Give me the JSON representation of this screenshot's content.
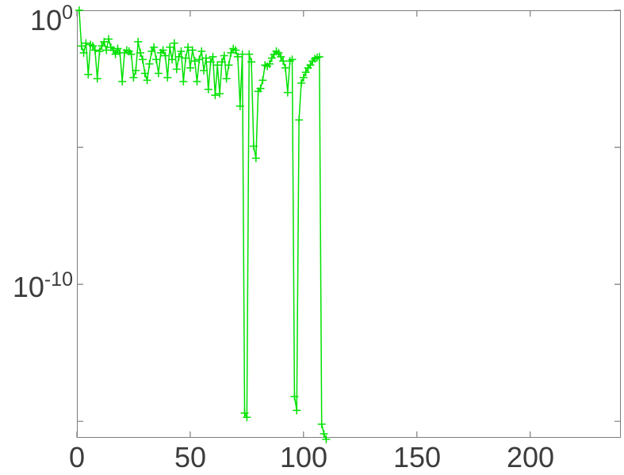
{
  "figure": {
    "background_color": "#ffffff",
    "axis_box_color": "#7d7d7d",
    "tick_label_color": "#3c3c3c"
  },
  "chart_data": {
    "type": "line",
    "title": "",
    "xlabel": "",
    "ylabel": "",
    "y_scale": "log",
    "grid": false,
    "legend": null,
    "xlim": [
      0,
      240
    ],
    "ylim": [
      2.5e-16,
      1.0
    ],
    "x_ticks": [
      0,
      50,
      100,
      150,
      200
    ],
    "x_tick_labels": [
      "0",
      "50",
      "100",
      "150",
      "200"
    ],
    "y_tick_exponents": [
      0,
      -5,
      -10,
      -15
    ],
    "y_tick_labels": [
      {
        "base": "10",
        "exp": "0"
      },
      {
        "base": "10",
        "exp": "-10"
      }
    ],
    "series": [
      {
        "color": "#00e100",
        "marker": "+",
        "x": [
          1,
          2,
          3,
          4,
          5,
          6,
          7,
          8,
          9,
          10,
          11,
          12,
          13,
          14,
          15,
          16,
          17,
          18,
          19,
          20,
          21,
          22,
          23,
          24,
          25,
          26,
          27,
          28,
          29,
          30,
          31,
          32,
          33,
          34,
          35,
          36,
          37,
          38,
          39,
          40,
          41,
          42,
          43,
          44,
          45,
          46,
          47,
          48,
          49,
          50,
          51,
          52,
          53,
          54,
          55,
          56,
          57,
          58,
          59,
          60,
          61,
          62,
          63,
          64,
          65,
          66,
          67,
          68,
          69,
          70,
          71,
          72,
          73,
          74,
          75,
          76,
          77,
          78,
          79,
          80,
          81,
          82,
          83,
          84,
          85,
          86,
          87,
          88,
          89,
          90,
          91,
          92,
          93,
          94,
          95,
          96,
          97,
          98,
          99,
          100,
          101,
          102,
          103,
          104,
          105,
          106,
          107,
          108,
          109,
          110
        ],
        "y": [
          1.0,
          0.05,
          0.028,
          0.063,
          0.0045,
          0.056,
          0.05,
          0.035,
          0.0032,
          0.032,
          0.05,
          0.071,
          0.035,
          0.089,
          0.045,
          0.035,
          0.025,
          0.04,
          0.028,
          0.0025,
          0.028,
          0.035,
          0.032,
          0.025,
          0.0035,
          0.0063,
          0.071,
          0.028,
          0.016,
          0.005,
          0.0028,
          0.011,
          0.032,
          0.045,
          0.016,
          0.005,
          0.028,
          0.035,
          0.022,
          0.0035,
          0.045,
          0.016,
          0.063,
          0.0071,
          0.02,
          0.032,
          0.0025,
          0.018,
          0.045,
          0.0079,
          0.035,
          0.014,
          0.0025,
          0.016,
          0.032,
          0.0063,
          0.018,
          0.0013,
          0.013,
          0.02,
          0.0008,
          0.01,
          0.0009,
          0.013,
          0.022,
          0.0032,
          0.01,
          0.028,
          0.04,
          0.035,
          0.02,
          0.00032,
          0.025,
          2e-15,
          1.4e-15,
          0.025,
          0.013,
          1.1e-05,
          4e-06,
          0.0011,
          0.0014,
          0.0028,
          0.01,
          0.009,
          0.011,
          0.018,
          0.025,
          0.032,
          0.028,
          0.02,
          0.014,
          0.0079,
          0.001,
          0.014,
          0.016,
          8e-15,
          2.5e-15,
          0.0001,
          0.0022,
          0.0035,
          0.0055,
          0.0079,
          0.01,
          0.014,
          0.017,
          0.019,
          0.02,
          7.9e-16,
          3.5e-16,
          2.2e-16
        ]
      }
    ]
  }
}
